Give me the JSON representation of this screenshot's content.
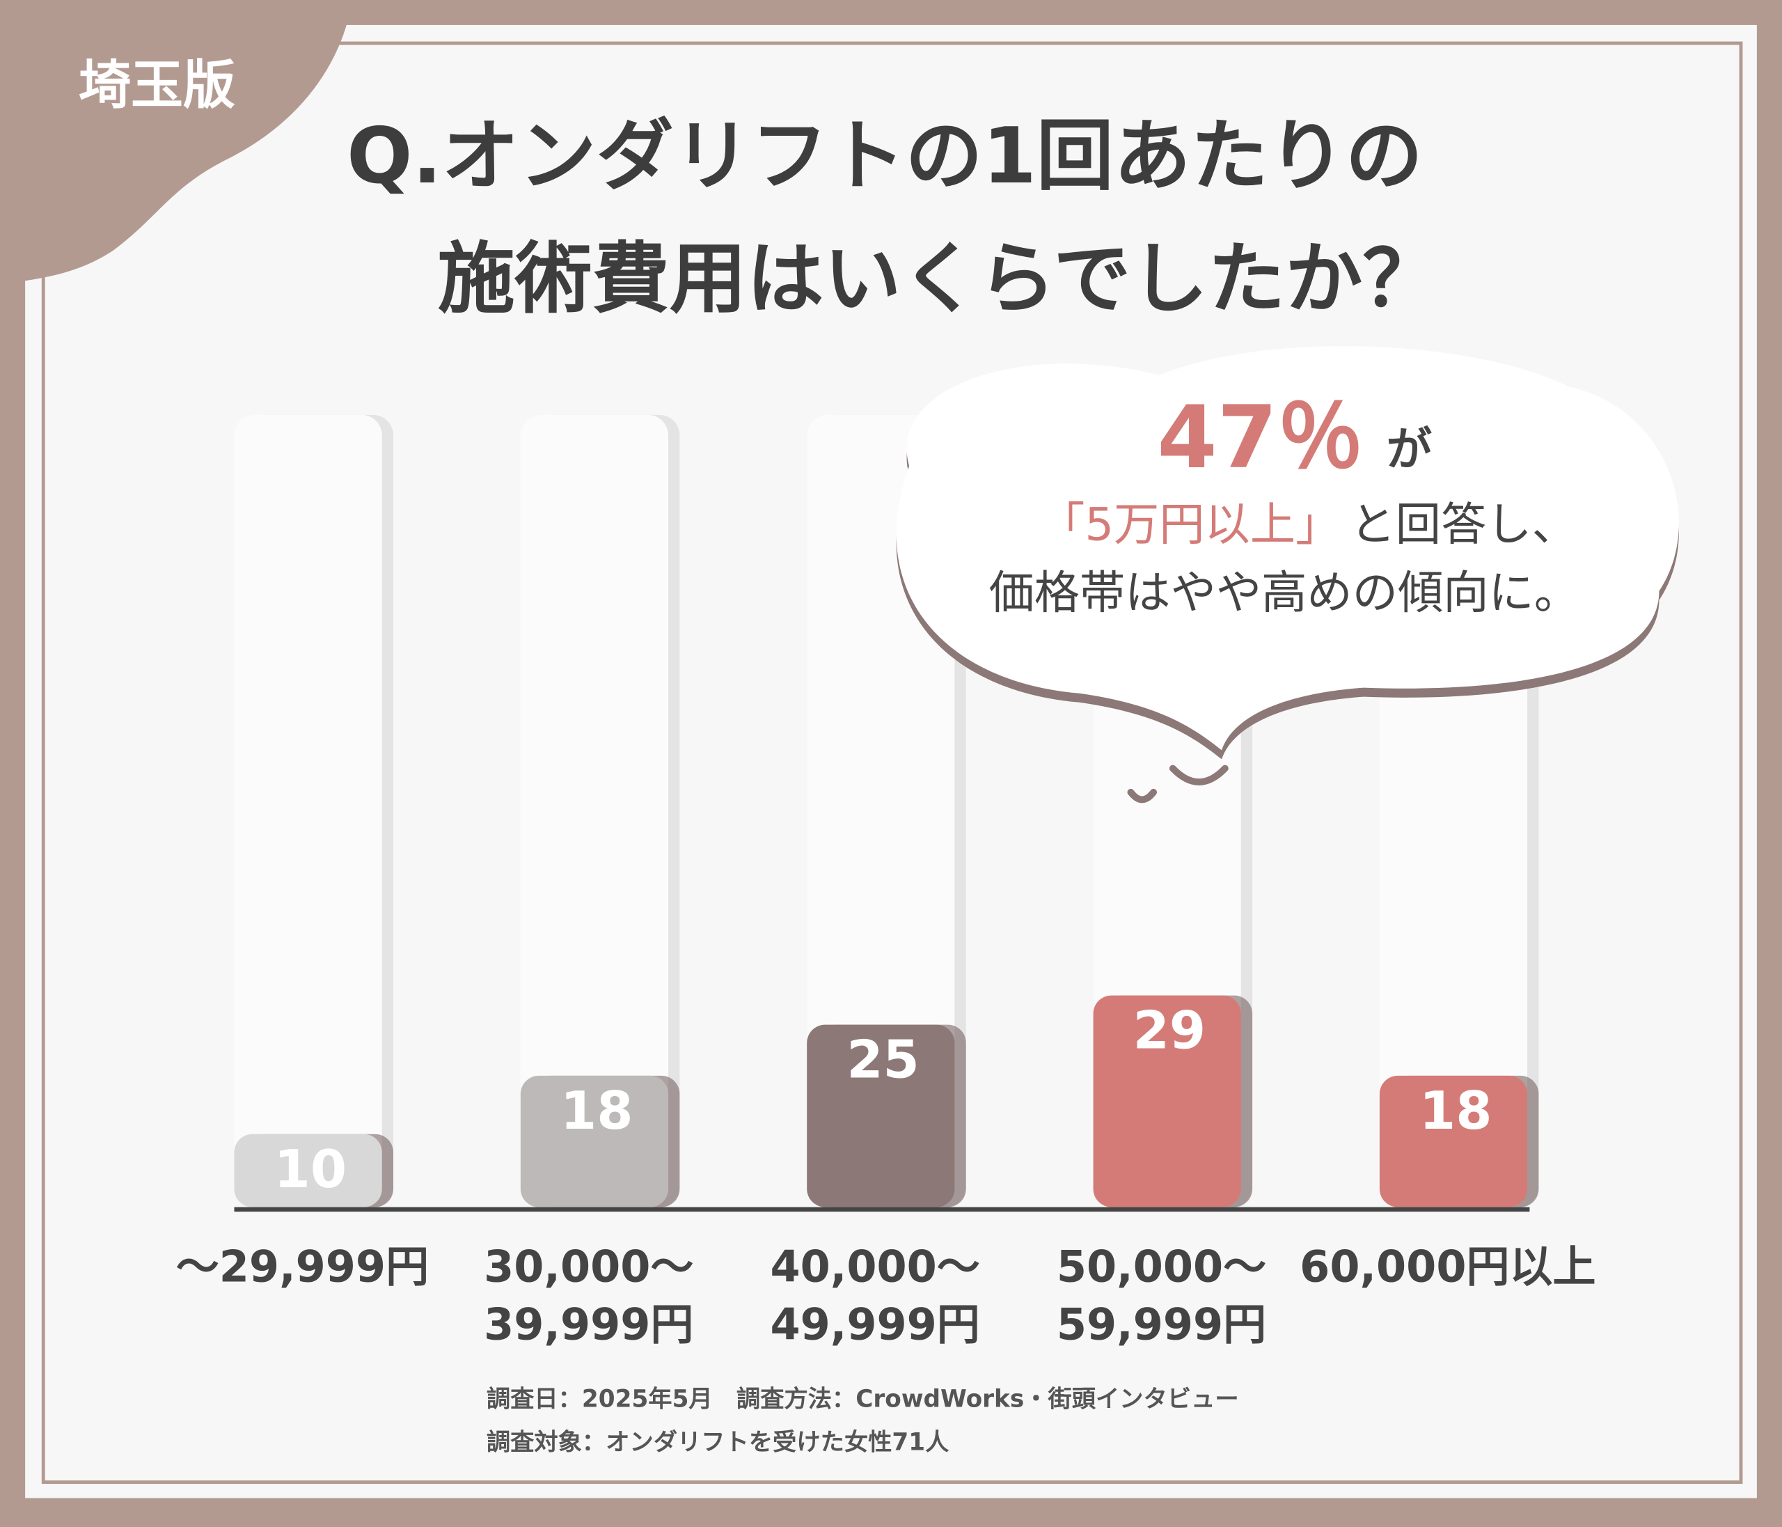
{
  "badge": "埼玉版",
  "chart_data": {
    "type": "bar",
    "title": [
      "Q.オンダリフトの1回あたりの",
      "施術費用はいくらでしたか？"
    ],
    "categories": [
      [
        "〜29,999円"
      ],
      [
        "30,000〜",
        "39,999円"
      ],
      [
        "40,000〜",
        "49,999円"
      ],
      [
        "50,000〜",
        "59,999円"
      ],
      [
        "60,000円以上"
      ]
    ],
    "values": [
      10,
      18,
      25,
      29,
      18
    ],
    "colors": [
      "#d9d8d8",
      "#bdb9b8",
      "#8c7876",
      "#d47b77",
      "#d47b77"
    ],
    "ylim": [
      0,
      100
    ],
    "annotation": {
      "figure": "47％",
      "suffix": "が",
      "highlight": "「5万円以上」",
      "line1": "と回答し、",
      "line2": "価格帯はやや高めの傾向に。"
    },
    "notes": [
      "調査日：2025年5月　調査方法：CrowdWorks・街頭インタビュー",
      "調査対象：オンダリフトを受けた女性71人"
    ]
  }
}
